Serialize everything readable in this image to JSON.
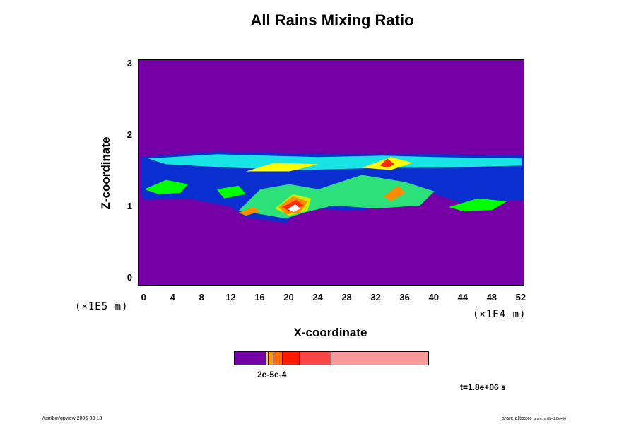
{
  "chart_data": {
    "type": "heatmap",
    "title": "All Rains Mixing Ratio",
    "xlabel": "X-coordinate",
    "ylabel": "Z-coordinate",
    "x_unit": "(×1E4 m)",
    "y_unit": "(×1E5 m)",
    "x_ticks": [
      "0",
      "4",
      "8",
      "12",
      "16",
      "20",
      "24",
      "28",
      "32",
      "36",
      "40",
      "44",
      "48",
      "52"
    ],
    "y_ticks": [
      "0",
      "1",
      "2",
      "3"
    ],
    "xlim": [
      -0.8,
      52.5
    ],
    "ylim": [
      -0.12,
      3.06
    ],
    "background_color": "#7400a6",
    "colorbar": {
      "label": "2e-5e-4",
      "colors": [
        "#7400a6",
        "#ffd400",
        "#ff9a00",
        "#ff6a00",
        "#ff1a00",
        "#ff4444",
        "#f99898"
      ],
      "widths": [
        0.165,
        0.01,
        0.025,
        0.05,
        0.085,
        0.165,
        0.5
      ]
    },
    "contour_colors": [
      "#0a2fd0",
      "#2a8cf0",
      "#18e4e4",
      "#2ce07a",
      "#00ff00",
      "#c8f000",
      "#ffff00",
      "#ff8c00",
      "#ff2a00",
      "#ffffff"
    ],
    "features": [
      {
        "level": 0,
        "points": [
          [
            -0.5,
            1.7
          ],
          [
            10,
            1.78
          ],
          [
            25,
            1.74
          ],
          [
            40,
            1.74
          ],
          [
            52.5,
            1.72
          ],
          [
            52.5,
            1.1
          ],
          [
            44,
            1.05
          ],
          [
            38,
            1.25
          ],
          [
            30,
            0.95
          ],
          [
            22,
            0.98
          ],
          [
            19.5,
            0.78
          ],
          [
            14,
            0.85
          ],
          [
            12,
            1.0
          ],
          [
            6,
            1.12
          ],
          [
            0,
            1.1
          ],
          [
            -0.5,
            1.18
          ]
        ]
      },
      {
        "level": 2,
        "points": [
          [
            0.5,
            1.68
          ],
          [
            10,
            1.74
          ],
          [
            24,
            1.7
          ],
          [
            33,
            1.72
          ],
          [
            40,
            1.7
          ],
          [
            52,
            1.68
          ],
          [
            52,
            1.58
          ],
          [
            40,
            1.55
          ],
          [
            33,
            1.55
          ],
          [
            22,
            1.52
          ],
          [
            12,
            1.55
          ],
          [
            3,
            1.6
          ]
        ]
      },
      {
        "level": 3,
        "points": [
          [
            13,
            0.95
          ],
          [
            16,
            1.25
          ],
          [
            20,
            1.32
          ],
          [
            24,
            1.25
          ],
          [
            30,
            1.45
          ],
          [
            36,
            1.35
          ],
          [
            40,
            1.22
          ],
          [
            38,
            1.02
          ],
          [
            32,
            0.98
          ],
          [
            26,
            1.02
          ],
          [
            22,
            0.92
          ],
          [
            19.5,
            0.84
          ],
          [
            16,
            0.9
          ]
        ]
      },
      {
        "level": 4,
        "points": [
          [
            0,
            1.25
          ],
          [
            3,
            1.38
          ],
          [
            6,
            1.32
          ],
          [
            5,
            1.2
          ],
          [
            2,
            1.18
          ]
        ]
      },
      {
        "level": 4,
        "points": [
          [
            10,
            1.25
          ],
          [
            13,
            1.3
          ],
          [
            14,
            1.18
          ],
          [
            11,
            1.12
          ]
        ]
      },
      {
        "level": 4,
        "points": [
          [
            42,
            1.0
          ],
          [
            46,
            1.12
          ],
          [
            50,
            1.08
          ],
          [
            48,
            0.96
          ],
          [
            44,
            0.94
          ]
        ]
      },
      {
        "level": 5,
        "points": [
          [
            18,
            0.98
          ],
          [
            20.5,
            1.18
          ],
          [
            23,
            1.12
          ],
          [
            22.5,
            0.95
          ],
          [
            20,
            0.88
          ]
        ]
      },
      {
        "level": 6,
        "points": [
          [
            30,
            1.55
          ],
          [
            34,
            1.7
          ],
          [
            37,
            1.62
          ],
          [
            34,
            1.52
          ]
        ]
      },
      {
        "level": 6,
        "points": [
          [
            14,
            1.5
          ],
          [
            18,
            1.62
          ],
          [
            24,
            1.6
          ],
          [
            20,
            1.5
          ]
        ]
      },
      {
        "level": 7,
        "points": [
          [
            18.5,
            1.0
          ],
          [
            20.5,
            1.15
          ],
          [
            22.5,
            1.08
          ],
          [
            21.5,
            0.92
          ],
          [
            19.5,
            0.9
          ]
        ]
      },
      {
        "level": 7,
        "points": [
          [
            13,
            0.92
          ],
          [
            15,
            1.0
          ],
          [
            16,
            0.94
          ],
          [
            14,
            0.88
          ]
        ]
      },
      {
        "level": 7,
        "points": [
          [
            33,
            1.15
          ],
          [
            35,
            1.3
          ],
          [
            36,
            1.2
          ],
          [
            34,
            1.08
          ]
        ]
      },
      {
        "level": 8,
        "points": [
          [
            32.5,
            1.58
          ],
          [
            33.5,
            1.68
          ],
          [
            34.5,
            1.6
          ],
          [
            33.5,
            1.55
          ]
        ]
      },
      {
        "level": 8,
        "points": [
          [
            19,
            1.0
          ],
          [
            21,
            1.1
          ],
          [
            22,
            1.02
          ],
          [
            20,
            0.94
          ]
        ]
      },
      {
        "level": 9,
        "points": [
          [
            19.8,
            0.97
          ],
          [
            20.8,
            1.04
          ],
          [
            21.5,
            0.98
          ],
          [
            20.6,
            0.93
          ]
        ]
      }
    ]
  },
  "time_label": "t=1.8e+06 s",
  "footer": {
    "left": "/usr/bin/gpview 2005-03-18",
    "right": "arare-all",
    "right_sub": "200000_arare.nc@t=1.8e+06"
  }
}
